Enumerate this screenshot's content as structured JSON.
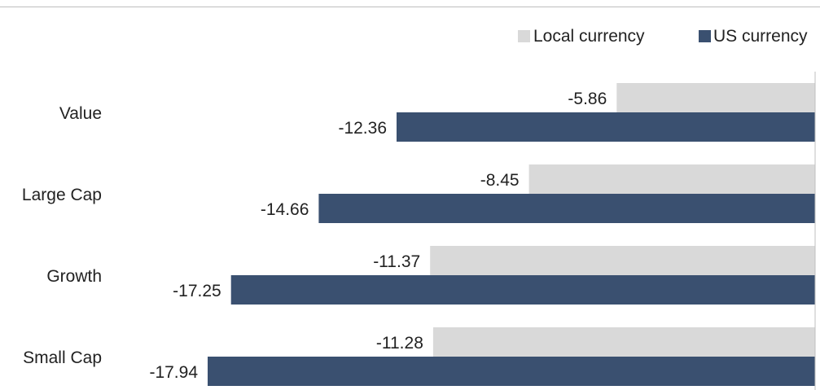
{
  "chart_data": {
    "type": "bar",
    "orientation": "horizontal",
    "categories": [
      "Value",
      "Large Cap",
      "Growth",
      "Small Cap"
    ],
    "series": [
      {
        "name": "Local currency",
        "values": [
          -5.86,
          -8.45,
          -11.37,
          -11.28
        ],
        "color": "#d9d9d9"
      },
      {
        "name": "US currency",
        "values": [
          -12.36,
          -14.66,
          -17.25,
          -17.94
        ],
        "color": "#3a5070"
      }
    ],
    "value_labels": {
      "Local currency": [
        "-5.86",
        "-8.45",
        "-11.37",
        "-11.28"
      ],
      "US currency": [
        "-12.36",
        "-14.66",
        "-17.25",
        "-17.94"
      ]
    },
    "xlim": [
      -21.0,
      0
    ],
    "grid": false,
    "legend_position": "top-right",
    "title": "",
    "xlabel": "",
    "ylabel": ""
  }
}
